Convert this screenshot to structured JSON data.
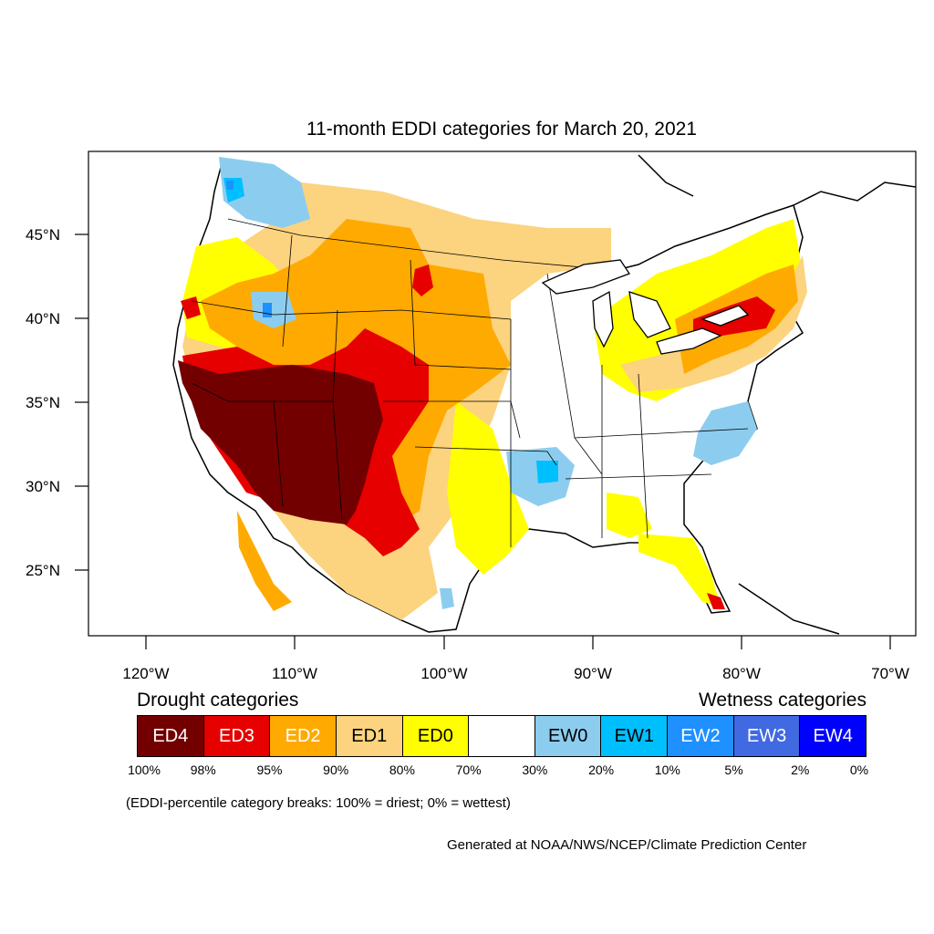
{
  "title": "11-month EDDI categories for March 20, 2021",
  "lat_labels": [
    "45°N",
    "40°N",
    "35°N",
    "30°N",
    "25°N"
  ],
  "lon_labels": [
    "120°W",
    "110°W",
    "100°W",
    "90°W",
    "80°W",
    "70°W"
  ],
  "legend": {
    "drought_heading": "Drought categories",
    "wetness_heading": "Wetness categories",
    "categories": [
      {
        "label": "ED4",
        "color": "#730000",
        "text_color": "#ffffff"
      },
      {
        "label": "ED3",
        "color": "#e60000",
        "text_color": "#ffffff"
      },
      {
        "label": "ED2",
        "color": "#ffaa00",
        "text_color": "#ffffff"
      },
      {
        "label": "ED1",
        "color": "#fcd37f",
        "text_color": "#000000"
      },
      {
        "label": "ED0",
        "color": "#ffff00",
        "text_color": "#000000"
      },
      {
        "label": "",
        "color": "#ffffff",
        "text_color": "#000000"
      },
      {
        "label": "EW0",
        "color": "#8ccdef",
        "text_color": "#000000"
      },
      {
        "label": "EW1",
        "color": "#00bfff",
        "text_color": "#000000"
      },
      {
        "label": "EW2",
        "color": "#1e90ff",
        "text_color": "#ffffff"
      },
      {
        "label": "EW3",
        "color": "#4169e1",
        "text_color": "#ffffff"
      },
      {
        "label": "EW4",
        "color": "#0000ff",
        "text_color": "#ffffff"
      }
    ],
    "breaks": [
      "100%",
      "98%",
      "95%",
      "90%",
      "80%",
      "70%",
      "30%",
      "20%",
      "10%",
      "5%",
      "2%",
      "0%"
    ]
  },
  "note": "(EDDI-percentile category breaks: 100% = driest; 0% = wettest)",
  "credit": "Generated at NOAA/NWS/NCEP/Climate Prediction Center"
}
